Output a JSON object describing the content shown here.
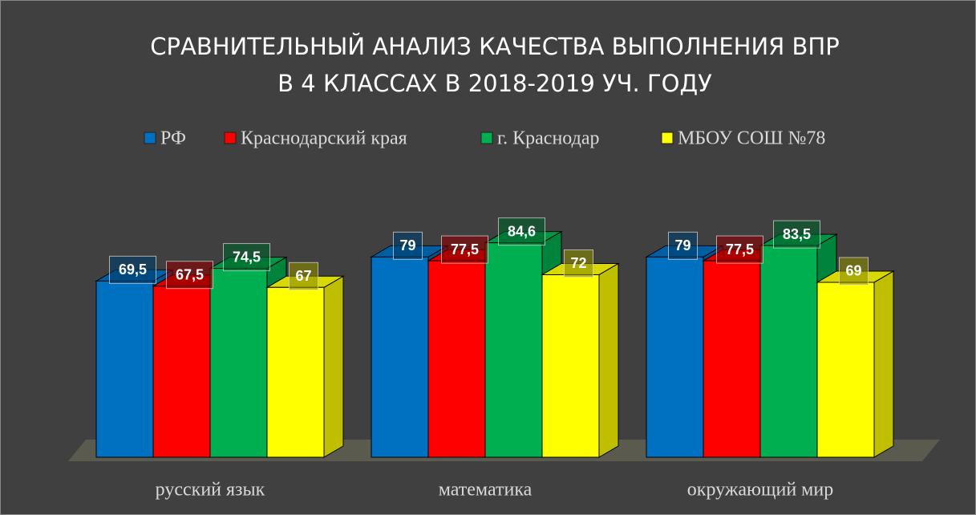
{
  "chart_data": {
    "type": "bar3d",
    "title": [
      "СРАВНИТЕЛЬНЫЙ АНАЛИЗ КАЧЕСТВА ВЫПОЛНЕНИЯ ВПР",
      "В 4 КЛАССАХ В 2018-2019 УЧ. ГОДУ"
    ],
    "categories": [
      "русский язык",
      "математика",
      "окружающий мир"
    ],
    "series": [
      {
        "name": "РФ",
        "color": "#0070c0",
        "values": [
          69.5,
          79,
          79
        ],
        "value_labels": [
          "69,5",
          "79",
          "79"
        ]
      },
      {
        "name": "Краснодарский края",
        "color": "#ff0000",
        "values": [
          67.5,
          77.5,
          77.5
        ],
        "value_labels": [
          "67,5",
          "77,5",
          "77,5"
        ]
      },
      {
        "name": "г. Краснодар",
        "color": "#00b050",
        "values": [
          74.5,
          84.6,
          83.5
        ],
        "value_labels": [
          "74,5",
          "84,6",
          "83,5"
        ]
      },
      {
        "name": "МБОУ СОШ №78",
        "color": "#ffff00",
        "values": [
          67,
          72,
          69
        ],
        "value_labels": [
          "67",
          "72",
          "69"
        ]
      }
    ],
    "ylim": [
      0,
      100
    ],
    "legend": "top"
  }
}
